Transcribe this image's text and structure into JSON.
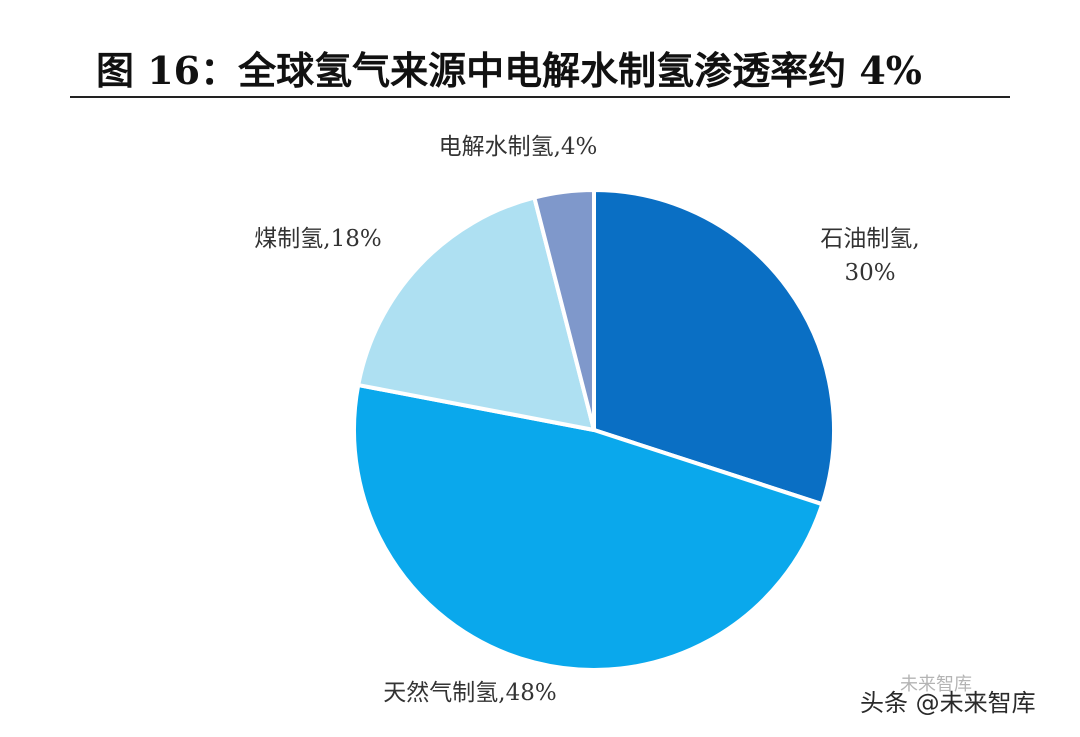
{
  "chart_data": {
    "type": "pie",
    "title": "图 16：全球氢气来源中电解水制氢渗透率约 4%",
    "slices": [
      {
        "name": "石油制氢",
        "value": 30,
        "label_lines": [
          "石油制氢,",
          "30%"
        ],
        "color": "#0A6FC4"
      },
      {
        "name": "天然气制氢",
        "value": 48,
        "label_lines": [
          "天然气制氢,48%"
        ],
        "color": "#0AA8EC"
      },
      {
        "name": "煤制氢",
        "value": 18,
        "label_lines": [
          "煤制氢,18%"
        ],
        "color": "#AEE0F2"
      },
      {
        "name": "电解水制氢",
        "value": 4,
        "label_lines": [
          "电解水制氢,4%"
        ],
        "color": "#7F98CB"
      }
    ],
    "start_angle_deg": 0,
    "direction": "clockwise",
    "legend": "none"
  },
  "watermark": {
    "text": "头条 @未来智库",
    "badge": "未来智库"
  }
}
